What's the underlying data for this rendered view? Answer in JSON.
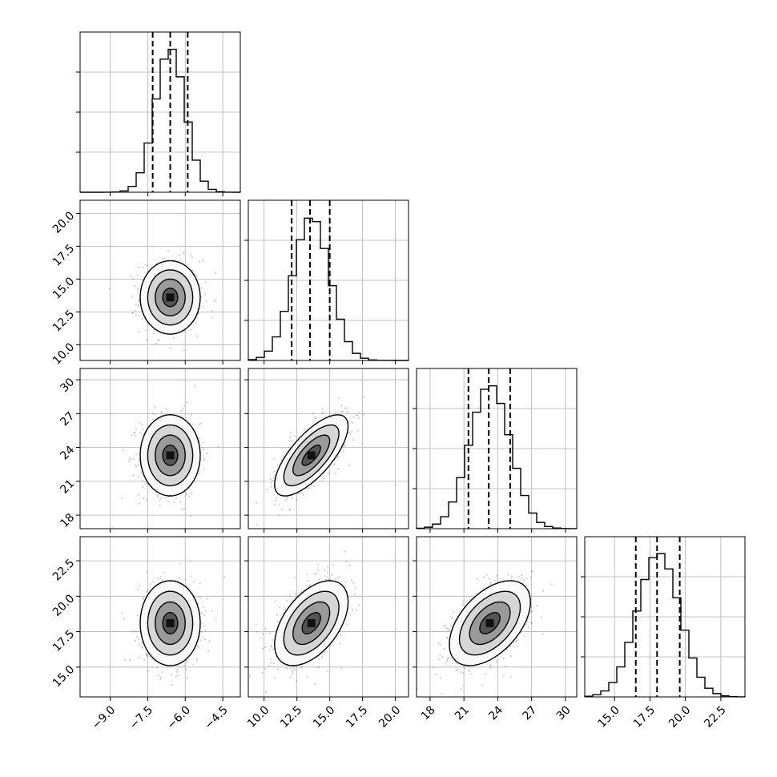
{
  "chart_data": {
    "type": "corner",
    "grid": true,
    "parameters": [
      {
        "range": [
          -10.2,
          -3.8
        ],
        "ticks": [
          -9.0,
          -7.5,
          -6.0,
          -4.5
        ],
        "tick_labels": [
          "−9.0",
          "−7.5",
          "−6.0",
          "−4.5"
        ],
        "quantiles": [
          -7.3,
          -6.6,
          -5.9
        ],
        "mean": -6.6,
        "sd": 0.6
      },
      {
        "range": [
          8.8,
          21.0
        ],
        "ticks": [
          10.0,
          12.5,
          15.0,
          17.5,
          20.0
        ],
        "tick_labels": [
          "10.0",
          "12.5",
          "15.0",
          "17.5",
          "20.0"
        ],
        "quantiles": [
          12.1,
          13.5,
          15.0
        ],
        "mean": 13.6,
        "sd": 1.4
      },
      {
        "range": [
          16.8,
          31.0
        ],
        "ticks": [
          18,
          21,
          24,
          27,
          30
        ],
        "tick_labels": [
          "18",
          "21",
          "24",
          "27",
          "30"
        ],
        "quantiles": [
          21.4,
          23.2,
          25.1
        ],
        "mean": 23.3,
        "sd": 1.8
      },
      {
        "range": [
          12.9,
          24.2
        ],
        "ticks": [
          15.0,
          17.5,
          20.0,
          22.5
        ],
        "tick_labels": [
          "15.0",
          "17.5",
          "20.0",
          "22.5"
        ],
        "quantiles": [
          16.5,
          18.0,
          19.6
        ],
        "mean": 18.1,
        "sd": 1.5
      }
    ],
    "correlations": [
      {
        "i": 1,
        "j": 0,
        "rho": 0.0
      },
      {
        "i": 2,
        "j": 0,
        "rho": 0.0
      },
      {
        "i": 2,
        "j": 1,
        "rho": 0.72
      },
      {
        "i": 3,
        "j": 0,
        "rho": 0.0
      },
      {
        "i": 3,
        "j": 1,
        "rho": 0.5
      },
      {
        "i": 3,
        "j": 2,
        "rho": 0.5
      }
    ],
    "contour_sigmas": [
      0.5,
      1.0,
      1.5,
      2.0
    ]
  }
}
